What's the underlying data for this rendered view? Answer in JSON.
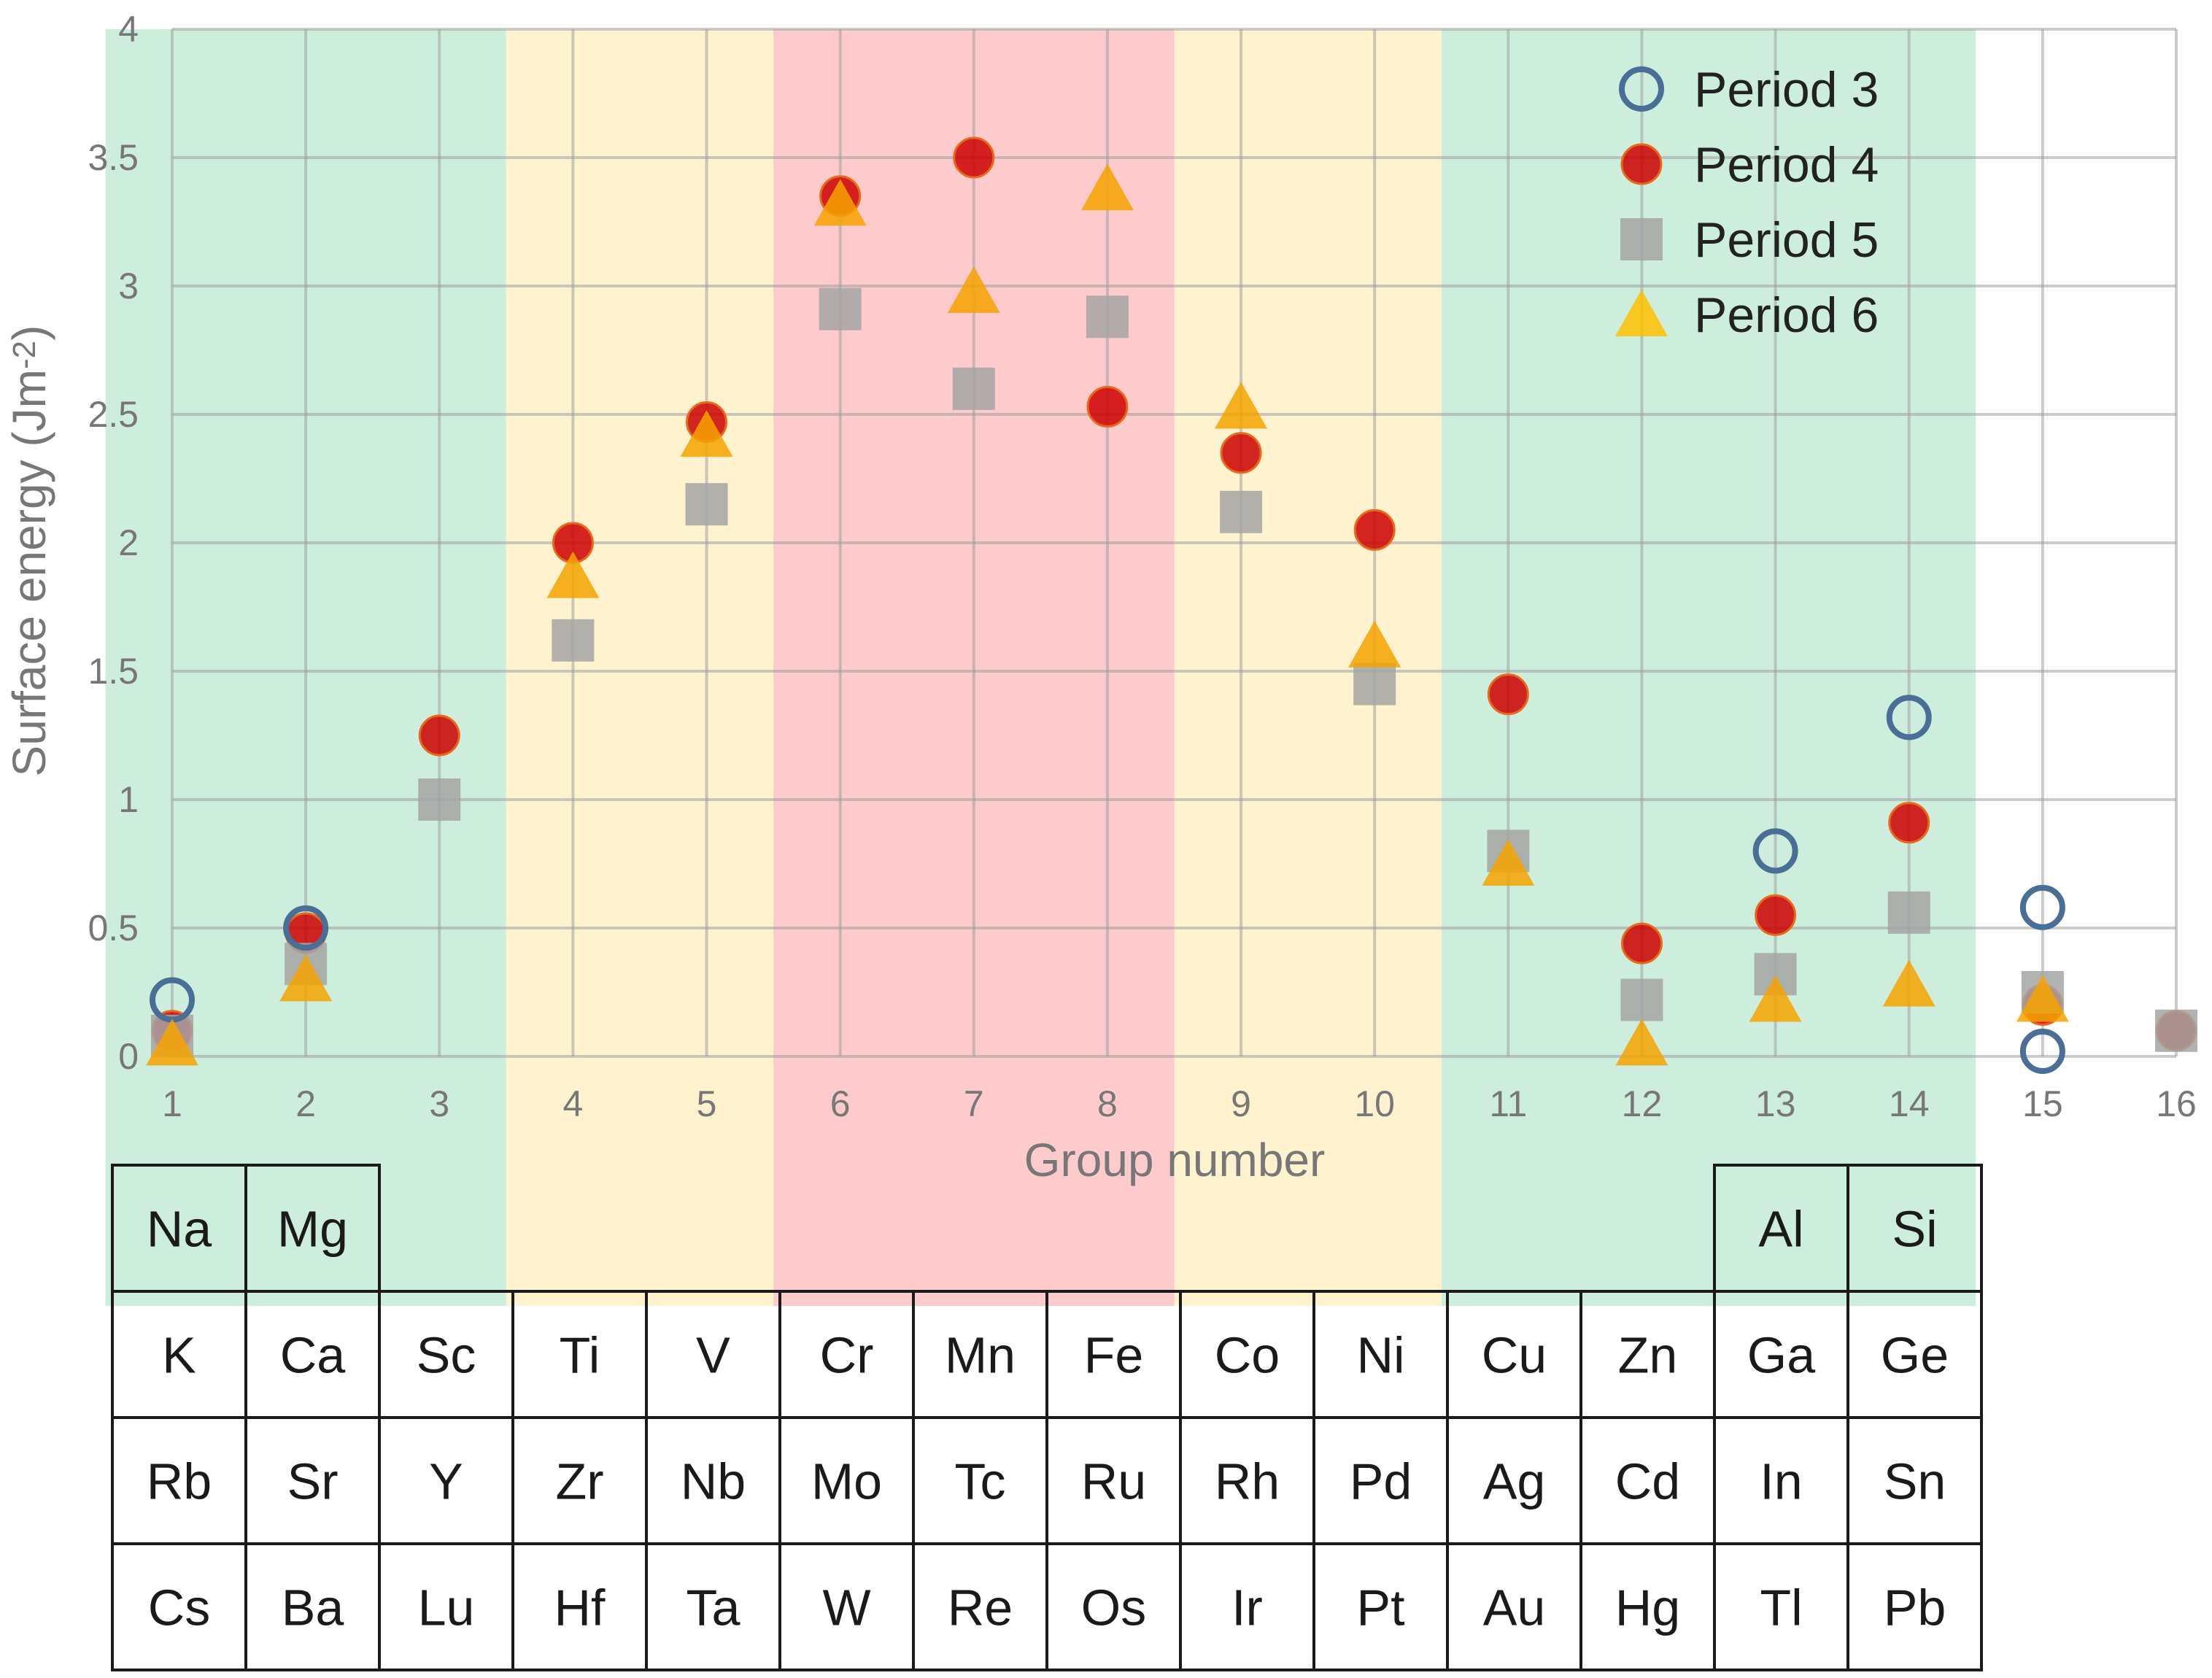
{
  "chart_data": {
    "type": "scatter",
    "title": "",
    "xlabel": "Group number",
    "ylabel": "Surface energy (Jm",
    "ylabel_superscript": "-2",
    "ylabel_close": ")",
    "xlim": [
      1,
      16
    ],
    "ylim": [
      0,
      4
    ],
    "x_ticks": [
      "1",
      "2",
      "3",
      "4",
      "5",
      "6",
      "7",
      "8",
      "9",
      "10",
      "11",
      "12",
      "13",
      "14",
      "15",
      "16"
    ],
    "y_ticks": [
      "0",
      "0.5",
      "1",
      "1.5",
      "2",
      "2.5",
      "3",
      "3.5",
      "4"
    ],
    "grid": true,
    "legend_position": "top-right",
    "bands": [
      {
        "from": 0.5,
        "to": 3.5,
        "color": "#cdeedd"
      },
      {
        "from": 3.5,
        "to": 5.5,
        "color": "#fff2cf"
      },
      {
        "from": 5.5,
        "to": 8.5,
        "color": "#fecbcc"
      },
      {
        "from": 8.5,
        "to": 10.5,
        "color": "#fff2cf"
      },
      {
        "from": 10.5,
        "to": 14.5,
        "color": "#cdeedd"
      }
    ],
    "series": [
      {
        "name": "Period 3",
        "marker": "open-circle",
        "color": "#4a6f96",
        "points": [
          [
            1,
            0.22
          ],
          [
            2,
            0.5
          ],
          [
            13,
            0.8
          ],
          [
            14,
            1.32
          ],
          [
            15,
            0.58
          ],
          [
            15,
            0.02
          ]
        ]
      },
      {
        "name": "Period 4",
        "marker": "circle",
        "color": "#cc0000",
        "points": [
          [
            1,
            0.1
          ],
          [
            2,
            0.48
          ],
          [
            3,
            1.25
          ],
          [
            4,
            2.0
          ],
          [
            5,
            2.47
          ],
          [
            6,
            3.35
          ],
          [
            7,
            3.5
          ],
          [
            8,
            2.53
          ],
          [
            9,
            2.35
          ],
          [
            10,
            2.05
          ],
          [
            11,
            1.41
          ],
          [
            12,
            0.44
          ],
          [
            13,
            0.55
          ],
          [
            14,
            0.91
          ],
          [
            15,
            0.2
          ],
          [
            16,
            0.1
          ]
        ]
      },
      {
        "name": "Period 5",
        "marker": "square",
        "color": "#a5a5a5",
        "points": [
          [
            1,
            0.08
          ],
          [
            2,
            0.36
          ],
          [
            3,
            1.0
          ],
          [
            4,
            1.62
          ],
          [
            5,
            2.15
          ],
          [
            6,
            2.91
          ],
          [
            7,
            2.6
          ],
          [
            8,
            2.88
          ],
          [
            9,
            2.12
          ],
          [
            10,
            1.45
          ],
          [
            11,
            0.8
          ],
          [
            12,
            0.22
          ],
          [
            13,
            0.32
          ],
          [
            14,
            0.56
          ],
          [
            15,
            0.25
          ],
          [
            16,
            0.1
          ]
        ]
      },
      {
        "name": "Period 6",
        "marker": "triangle",
        "color": "#ffc000",
        "points": [
          [
            1,
            0.05
          ],
          [
            2,
            0.3
          ],
          [
            4,
            1.87
          ],
          [
            5,
            2.42
          ],
          [
            6,
            3.32
          ],
          [
            7,
            2.98
          ],
          [
            8,
            3.38
          ],
          [
            9,
            2.53
          ],
          [
            10,
            1.6
          ],
          [
            11,
            0.75
          ],
          [
            12,
            0.05
          ],
          [
            13,
            0.22
          ],
          [
            14,
            0.28
          ],
          [
            15,
            0.22
          ]
        ]
      }
    ]
  },
  "periodic_table": {
    "rows": [
      {
        "start_group": 1,
        "cells": [
          "Na",
          "Mg"
        ]
      },
      {
        "start_group": 13,
        "cells": [
          "Al",
          "Si"
        ]
      },
      {
        "start_group": 1,
        "cells": [
          "K",
          "Ca",
          "Sc",
          "Ti",
          "V",
          "Cr",
          "Mn",
          "Fe",
          "Co",
          "Ni",
          "Cu",
          "Zn",
          "Ga",
          "Ge"
        ]
      },
      {
        "start_group": 1,
        "cells": [
          "Rb",
          "Sr",
          "Y",
          "Zr",
          "Nb",
          "Mo",
          "Tc",
          "Ru",
          "Rh",
          "Pd",
          "Ag",
          "Cd",
          "In",
          "Sn"
        ]
      },
      {
        "start_group": 1,
        "cells": [
          "Cs",
          "Ba",
          "Lu",
          "Hf",
          "Ta",
          "W",
          "Re",
          "Os",
          "Ir",
          "Pt",
          "Au",
          "Hg",
          "Tl",
          "Pb"
        ]
      }
    ],
    "row_index": [
      0,
      0,
      1,
      2,
      3
    ]
  }
}
